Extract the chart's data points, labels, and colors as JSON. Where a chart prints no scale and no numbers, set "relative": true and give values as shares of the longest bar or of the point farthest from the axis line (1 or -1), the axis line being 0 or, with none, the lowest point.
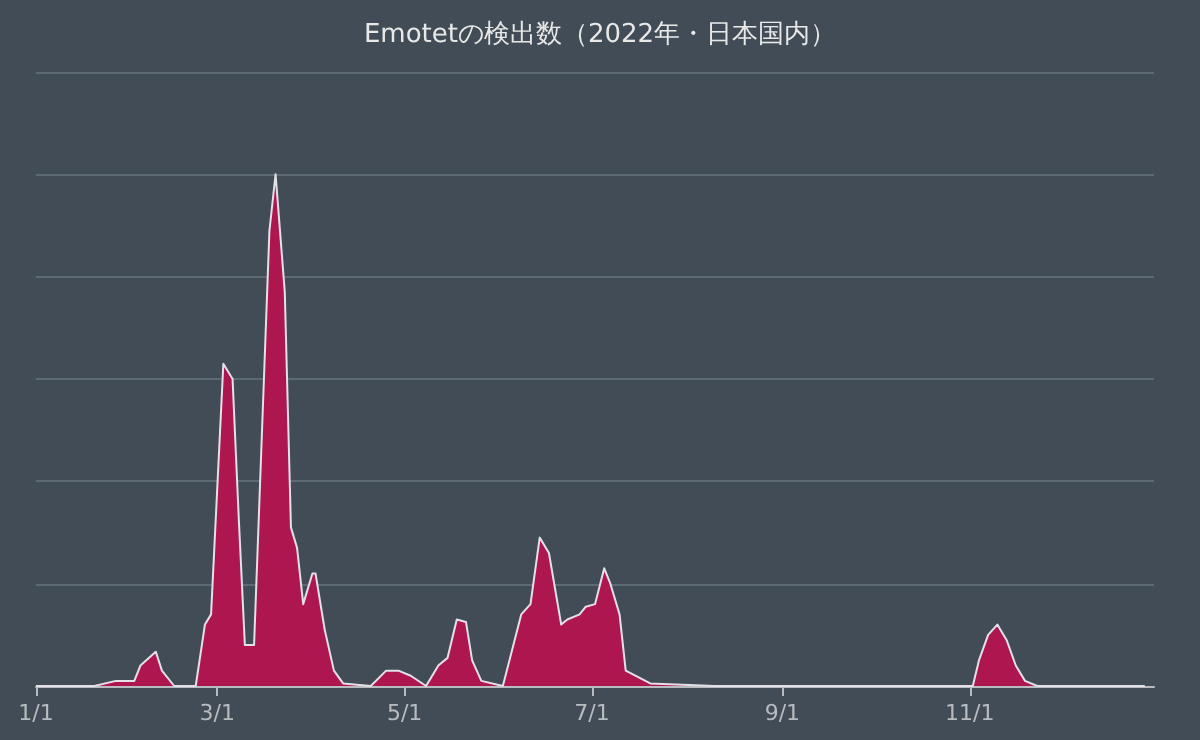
{
  "chart_data": {
    "type": "area",
    "title": "Emotetの検出数（2022年・日本国内）",
    "relative": true,
    "grid": "y",
    "marker": "none",
    "xlim": [
      "2022-01-01",
      "2022-12-31"
    ],
    "xticks": [
      {
        "value": "2022-01-01",
        "label": "1/1"
      },
      {
        "value": "2022-03-01",
        "label": "3/1"
      },
      {
        "value": "2022-05-01",
        "label": "5/1"
      },
      {
        "value": "2022-07-01",
        "label": "7/1"
      },
      {
        "value": "2022-09-01",
        "label": "9/1"
      },
      {
        "value": "2022-11-01",
        "label": "11/1"
      }
    ],
    "x": [
      "2022-01-01",
      "2022-01-20",
      "2022-01-27",
      "2022-02-02",
      "2022-02-04",
      "2022-02-09",
      "2022-02-11",
      "2022-02-15",
      "2022-02-22",
      "2022-02-25",
      "2022-02-27",
      "2022-03-03",
      "2022-03-06",
      "2022-03-08",
      "2022-03-10",
      "2022-03-13",
      "2022-03-18",
      "2022-03-20",
      "2022-03-23",
      "2022-03-25",
      "2022-03-27",
      "2022-03-29",
      "2022-04-01",
      "2022-04-02",
      "2022-04-05",
      "2022-04-08",
      "2022-04-11",
      "2022-04-20",
      "2022-04-25",
      "2022-04-29",
      "2022-05-03",
      "2022-05-08",
      "2022-05-12",
      "2022-05-15",
      "2022-05-18",
      "2022-05-21",
      "2022-05-23",
      "2022-05-26",
      "2022-06-02",
      "2022-06-08",
      "2022-06-11",
      "2022-06-14",
      "2022-06-17",
      "2022-06-21",
      "2022-06-23",
      "2022-06-27",
      "2022-06-29",
      "2022-07-02",
      "2022-07-05",
      "2022-07-07",
      "2022-07-10",
      "2022-07-12",
      "2022-07-20",
      "2022-08-10",
      "2022-11-02",
      "2022-11-04",
      "2022-11-07",
      "2022-11-10",
      "2022-11-13",
      "2022-11-16",
      "2022-11-19",
      "2022-11-23",
      "2022-12-28"
    ],
    "series": [
      {
        "color": "#ae1650",
        "values": [
          0,
          0,
          0.01,
          0.01,
          0.04,
          0.067,
          0.03,
          0,
          0,
          0.12,
          0.14,
          0.63,
          0.6,
          0.33,
          0.08,
          0.08,
          0.89,
          1,
          0.77,
          0.31,
          0.27,
          0.16,
          0.22,
          0.22,
          0.11,
          0.03,
          0.005,
          0,
          0.03,
          0.03,
          0.02,
          0,
          0.04,
          0.055,
          0.13,
          0.125,
          0.05,
          0.01,
          0,
          0.14,
          0.16,
          0.29,
          0.26,
          0.12,
          0.13,
          0.14,
          0.155,
          0.16,
          0.23,
          0.2,
          0.14,
          0.03,
          0.005,
          0,
          0,
          0.05,
          0.1,
          0.12,
          0.09,
          0.04,
          0.01,
          0,
          0
        ]
      }
    ]
  }
}
